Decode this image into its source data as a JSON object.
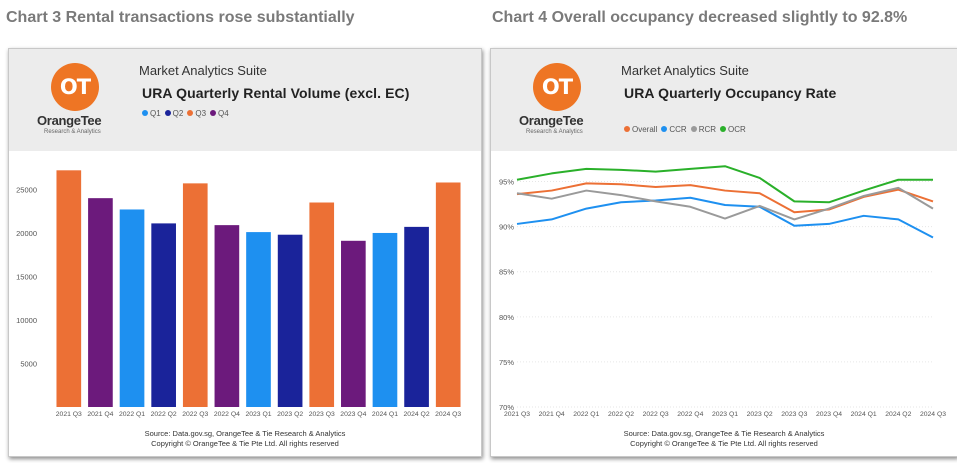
{
  "headings": {
    "left": "Chart 3 Rental transactions rose substantially",
    "right": "Chart 4 Overall occupancy decreased slightly to 92.8%"
  },
  "brand": {
    "logo_mark": "OT",
    "name": "OrangeTee",
    "tagline": "Research & Analytics",
    "suite": "Market Analytics Suite"
  },
  "colors": {
    "orange": "#ec7035",
    "light_blue": "#1e90f0",
    "dark_blue": "#1a239a",
    "purple": "#6c1a7c",
    "grey": "#9a9a9a",
    "green": "#2ab02a",
    "logo": "#ee7524"
  },
  "panels": {
    "left": {
      "title": "URA Quarterly Rental Volume (excl. EC)",
      "source_line1": "Source: Data.gov.sg, OrangeTee & Tie Research & Analytics",
      "source_line2": "Copyright © OrangeTee & Tie Pte Ltd. All rights reserved"
    },
    "right": {
      "title": "URA Quarterly Occupancy Rate",
      "source_line1": "Source: Data.gov.sg, OrangeTee & Tie Research & Analytics",
      "source_line2": "Copyright © OrangeTee & Tie Pte Ltd. All rights reserved"
    }
  },
  "chart_data": [
    {
      "type": "bar",
      "title": "URA Quarterly Rental Volume (excl. EC)",
      "categories": [
        "2021 Q3",
        "2021 Q4",
        "2022 Q1",
        "2022 Q2",
        "2022 Q3",
        "2022 Q4",
        "2023 Q1",
        "2023 Q2",
        "2023 Q3",
        "2023 Q4",
        "2024 Q1",
        "2024 Q2",
        "2024 Q3"
      ],
      "values": [
        27200,
        24000,
        22700,
        21100,
        25700,
        20900,
        20100,
        19800,
        23500,
        19100,
        20000,
        20700,
        25800
      ],
      "quarter_of_bar": [
        "Q3",
        "Q4",
        "Q1",
        "Q2",
        "Q3",
        "Q4",
        "Q1",
        "Q2",
        "Q3",
        "Q4",
        "Q1",
        "Q2",
        "Q3"
      ],
      "legend": [
        {
          "name": "Q1",
          "color": "#1e90f0"
        },
        {
          "name": "Q2",
          "color": "#1a239a"
        },
        {
          "name": "Q3",
          "color": "#ec7035"
        },
        {
          "name": "Q4",
          "color": "#6c1a7c"
        }
      ],
      "yticks": [
        5000,
        10000,
        15000,
        20000,
        25000
      ],
      "ylim": [
        0,
        28500
      ],
      "grid": false,
      "legend_position": "top-left"
    },
    {
      "type": "line",
      "title": "URA Quarterly Occupancy Rate",
      "categories": [
        "2021 Q3",
        "2021 Q4",
        "2022 Q1",
        "2022 Q2",
        "2022 Q3",
        "2022 Q4",
        "2023 Q1",
        "2023 Q2",
        "2023 Q3",
        "2023 Q4",
        "2024 Q1",
        "2024 Q2",
        "2024 Q3"
      ],
      "series": [
        {
          "name": "Overall",
          "color": "#ec7035",
          "values": [
            93.6,
            94.0,
            94.8,
            94.7,
            94.4,
            94.6,
            94.0,
            93.7,
            91.6,
            91.9,
            93.3,
            94.1,
            92.8
          ]
        },
        {
          "name": "CCR",
          "color": "#1e90f0",
          "values": [
            90.3,
            90.8,
            92.0,
            92.7,
            92.9,
            93.2,
            92.4,
            92.2,
            90.1,
            90.3,
            91.2,
            90.8,
            88.8
          ]
        },
        {
          "name": "RCR",
          "color": "#9a9a9a",
          "values": [
            93.7,
            93.1,
            94.0,
            93.5,
            92.8,
            92.2,
            90.9,
            92.3,
            90.8,
            92.0,
            93.4,
            94.3,
            92.0
          ]
        },
        {
          "name": "OCR",
          "color": "#2ab02a",
          "values": [
            95.2,
            95.9,
            96.4,
            96.3,
            96.1,
            96.4,
            96.7,
            95.4,
            92.8,
            92.7,
            94.0,
            95.2,
            95.2
          ]
        }
      ],
      "yticks": [
        70,
        75,
        80,
        85,
        90,
        95
      ],
      "ytick_labels": [
        "70%",
        "75%",
        "80%",
        "85%",
        "90%",
        "95%"
      ],
      "ylim": [
        70,
        97.5
      ],
      "grid": true,
      "legend_position": "top-left"
    }
  ]
}
